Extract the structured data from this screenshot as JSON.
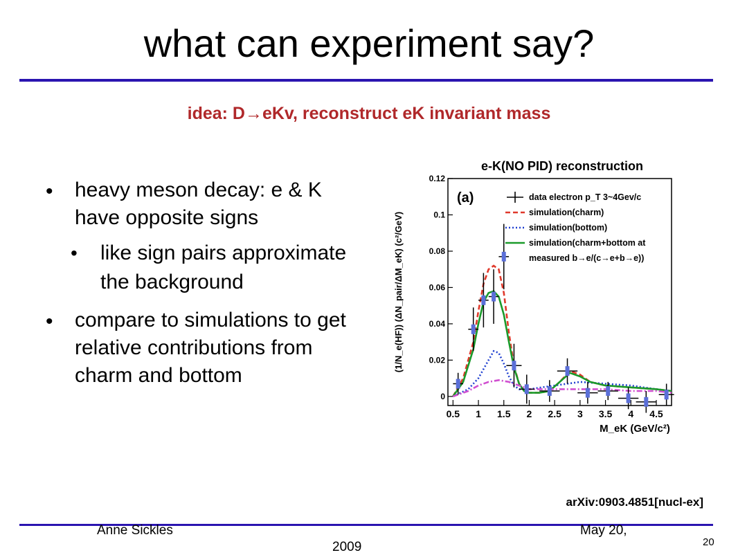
{
  "slide": {
    "title": "what can experiment say?",
    "subtitle": "idea: D→eKv, reconstruct eK invariant mass",
    "bullets": [
      {
        "text": "heavy meson decay: e & K have opposite signs",
        "level": 1
      },
      {
        "text": "like sign pairs approximate the background",
        "level": 2
      },
      {
        "text": "compare to simulations to get relative contributions from charm and bottom",
        "level": 1
      }
    ],
    "citation": "arXiv:0903.4851[nucl-ex]",
    "footer": {
      "author": "Anne Sickles",
      "date_line1": "May 20,",
      "date_line2": "2009",
      "page": "20"
    },
    "rule_color": "#2a14b0",
    "subtitle_color": "#b0282a"
  },
  "chart_data": {
    "type": "line",
    "title": "e-K(NO PID) reconstruction",
    "panel_label": "(a)",
    "xlabel": "M_eK (GeV/c²)",
    "ylabel": "(1/N_e(HF)) (ΔN_pair/ΔM_eK) (c²/GeV)",
    "xlim": [
      0.4,
      4.8
    ],
    "ylim": [
      -0.005,
      0.12
    ],
    "x_ticks": [
      "0.5",
      "1",
      "1.5",
      "2",
      "2.5",
      "3",
      "3.5",
      "4",
      "4.5"
    ],
    "y_ticks": [
      "0",
      "0.02",
      "0.04",
      "0.06",
      "0.08",
      "0.1",
      "0.12"
    ],
    "legend": [
      "data  electron p_T 3~4Gev/c",
      "simulation(charm)",
      "simulation(bottom)",
      "simulation(charm+bottom at",
      "measured b→e/(c→e+b→e))"
    ],
    "series": [
      {
        "name": "data  electron p_T 3~4Gev/c",
        "color": "#000000",
        "points": [
          {
            "x": 0.6,
            "y": 0.007,
            "xe": 0.1,
            "ye": 0.006
          },
          {
            "x": 0.9,
            "y": 0.037,
            "xe": 0.1,
            "ye": 0.012
          },
          {
            "x": 1.1,
            "y": 0.053,
            "xe": 0.1,
            "ye": 0.015
          },
          {
            "x": 1.3,
            "y": 0.055,
            "xe": 0.1,
            "ye": 0.015
          },
          {
            "x": 1.5,
            "y": 0.077,
            "xe": 0.1,
            "ye": 0.018
          },
          {
            "x": 1.7,
            "y": 0.017,
            "xe": 0.15,
            "ye": 0.012
          },
          {
            "x": 1.95,
            "y": 0.004,
            "xe": 0.15,
            "ye": 0.008
          },
          {
            "x": 2.4,
            "y": 0.003,
            "xe": 0.2,
            "ye": 0.006
          },
          {
            "x": 2.75,
            "y": 0.014,
            "xe": 0.2,
            "ye": 0.007
          },
          {
            "x": 3.15,
            "y": 0.002,
            "xe": 0.2,
            "ye": 0.006
          },
          {
            "x": 3.55,
            "y": 0.003,
            "xe": 0.2,
            "ye": 0.005
          },
          {
            "x": 3.95,
            "y": -0.001,
            "xe": 0.2,
            "ye": 0.006
          },
          {
            "x": 4.3,
            "y": -0.003,
            "xe": 0.2,
            "ye": 0.006
          },
          {
            "x": 4.7,
            "y": 0.001,
            "xe": 0.15,
            "ye": 0.006
          }
        ]
      },
      {
        "name": "simulation(charm)",
        "color": "#e0392b",
        "dash": "7,4",
        "x": [
          0.5,
          0.7,
          0.9,
          1.0,
          1.1,
          1.2,
          1.3,
          1.4,
          1.5,
          1.6,
          1.7,
          1.8,
          1.9,
          2.0,
          2.2,
          2.4,
          2.6,
          2.8,
          3.0,
          3.2,
          3.5,
          4.0,
          4.5,
          4.8
        ],
        "y": [
          0.0,
          0.01,
          0.03,
          0.047,
          0.062,
          0.07,
          0.072,
          0.07,
          0.057,
          0.035,
          0.017,
          0.007,
          0.003,
          0.002,
          0.002,
          0.003,
          0.008,
          0.014,
          0.012,
          0.008,
          0.006,
          0.005,
          0.004,
          0.003
        ]
      },
      {
        "name": "simulation(bottom)",
        "color": "#1f3fd0",
        "dash": "2,3",
        "x": [
          0.5,
          0.8,
          1.0,
          1.2,
          1.3,
          1.4,
          1.5,
          1.6,
          1.7,
          1.8,
          2.0,
          2.5,
          3.0,
          3.5,
          4.0,
          4.5,
          4.8
        ],
        "y": [
          0.0,
          0.004,
          0.01,
          0.02,
          0.025,
          0.024,
          0.018,
          0.011,
          0.006,
          0.004,
          0.004,
          0.006,
          0.008,
          0.007,
          0.006,
          0.004,
          0.003
        ]
      },
      {
        "name": "simulation(charm+bottom at measured b→e/(c→e+b→e))",
        "color": "#1a9a2a",
        "dash": "",
        "x": [
          0.5,
          0.7,
          0.9,
          1.0,
          1.1,
          1.2,
          1.3,
          1.4,
          1.5,
          1.6,
          1.7,
          1.8,
          1.9,
          2.0,
          2.2,
          2.4,
          2.6,
          2.8,
          3.0,
          3.2,
          3.5,
          4.0,
          4.5,
          4.8
        ],
        "y": [
          0.0,
          0.008,
          0.026,
          0.04,
          0.052,
          0.057,
          0.058,
          0.055,
          0.045,
          0.03,
          0.016,
          0.007,
          0.003,
          0.002,
          0.002,
          0.003,
          0.008,
          0.013,
          0.011,
          0.008,
          0.006,
          0.005,
          0.004,
          0.003
        ]
      },
      {
        "name": "",
        "color": "#d04fd0",
        "dash": "8,3,2,3",
        "x": [
          0.5,
          0.8,
          1.0,
          1.2,
          1.4,
          1.6,
          1.8,
          2.0,
          2.5,
          3.0,
          3.5,
          4.0,
          4.5,
          4.8
        ],
        "y": [
          0.0,
          0.003,
          0.006,
          0.008,
          0.009,
          0.008,
          0.006,
          0.004,
          0.004,
          0.004,
          0.004,
          0.003,
          0.003,
          0.002
        ]
      }
    ]
  }
}
